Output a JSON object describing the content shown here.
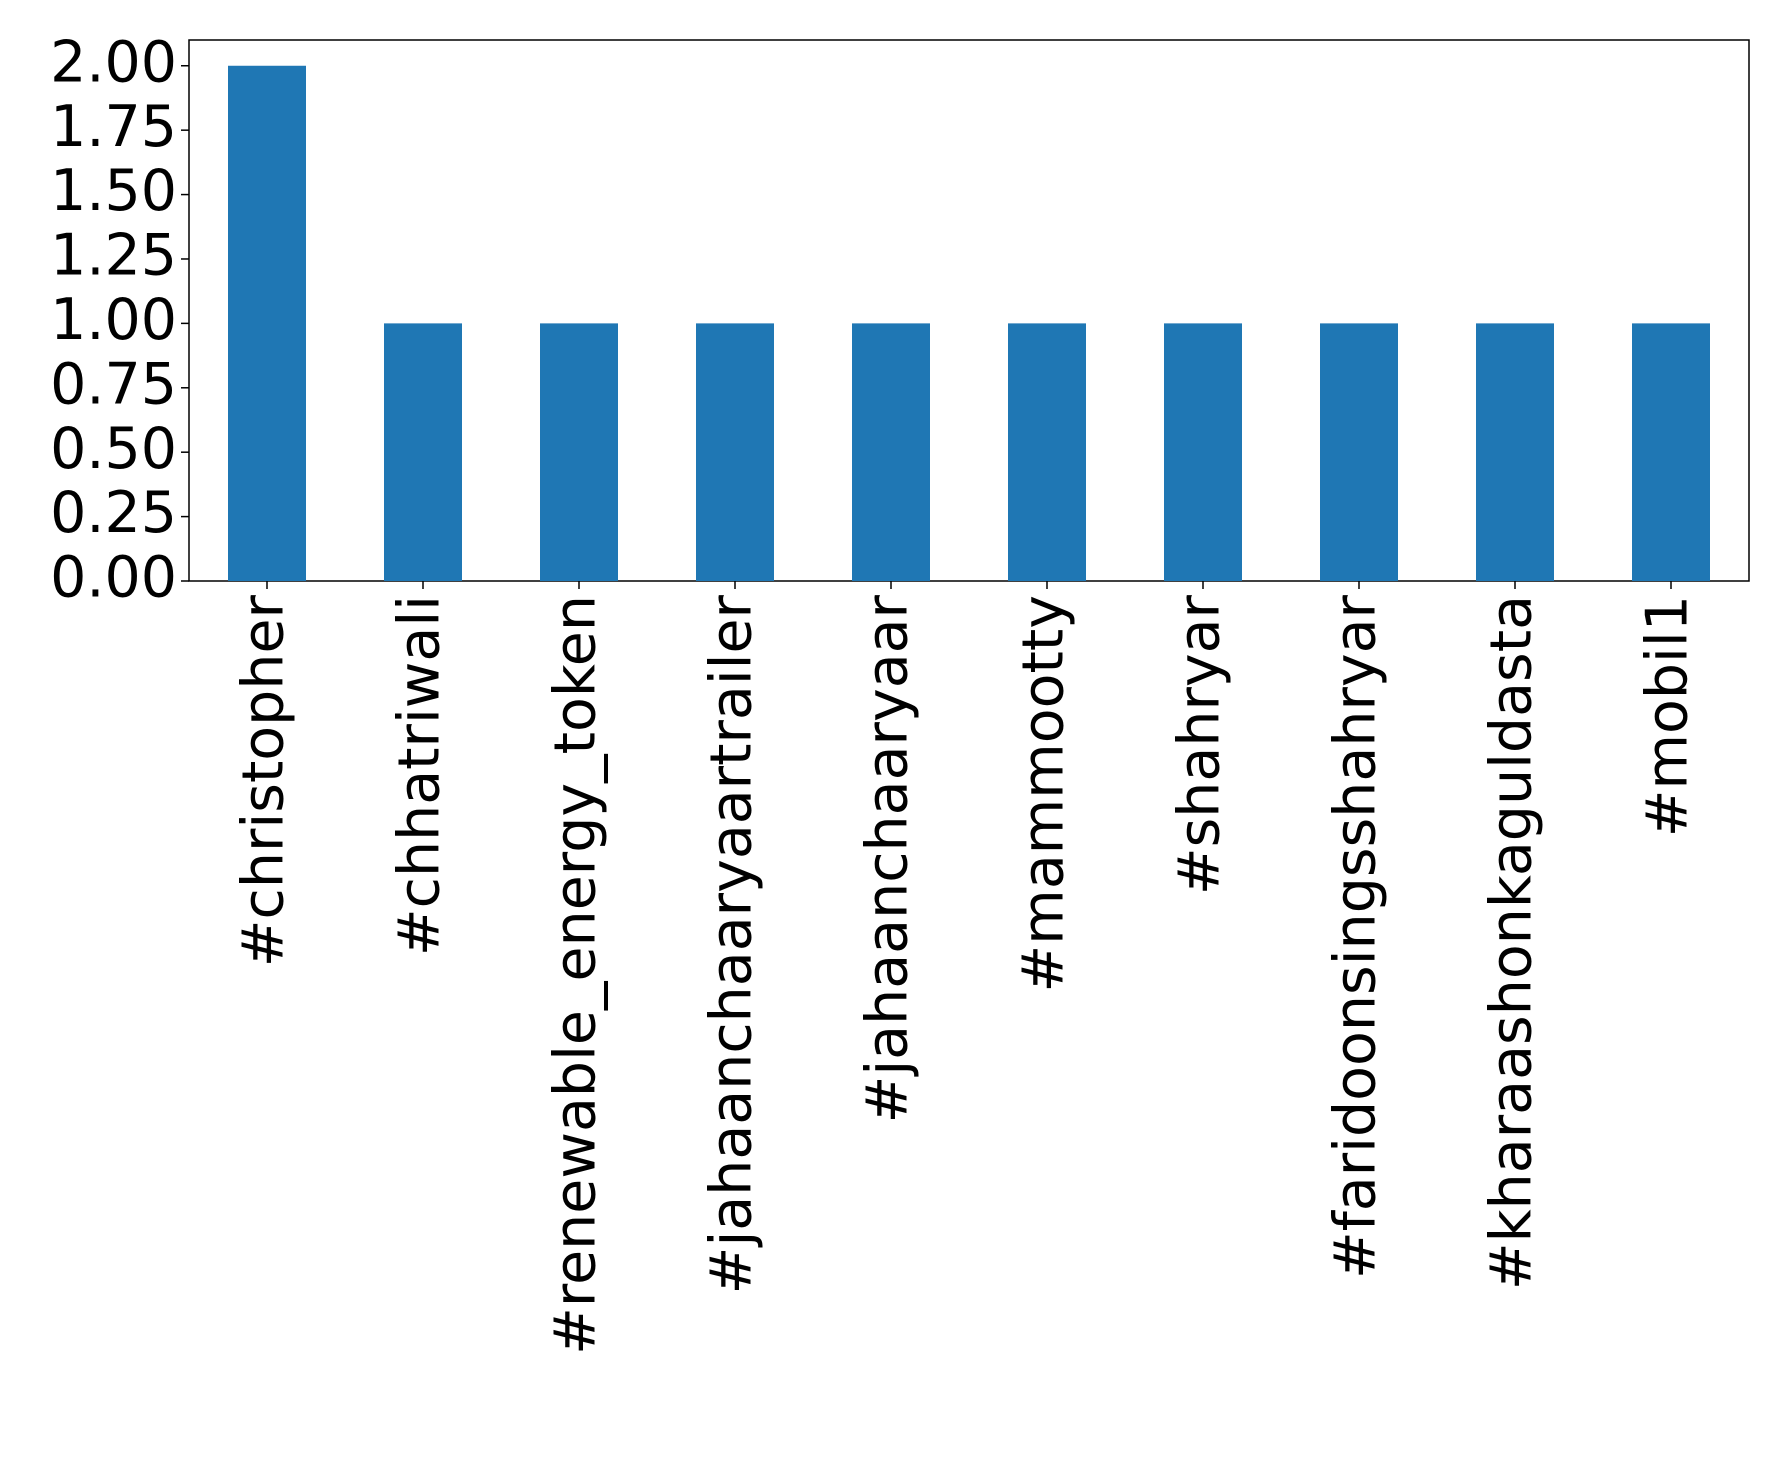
{
  "chart_data": {
    "type": "bar",
    "categories": [
      "#christopher",
      "#chhatriwali",
      "#renewable_energy_token",
      "#jahaanchaaryaartrailer",
      "#jahaanchaaryaar",
      "#mammootty",
      "#shahryar",
      "#faridoonsingsshahryar",
      "#kharaashonkaguldasta",
      "#mobil1"
    ],
    "values": [
      2,
      1,
      1,
      1,
      1,
      1,
      1,
      1,
      1,
      1
    ],
    "color": "#1f77b4",
    "ylim": [
      0,
      2.1
    ],
    "yticks": [
      {
        "value": 0,
        "label": "0.00"
      },
      {
        "value": 0.25,
        "label": "0.25"
      },
      {
        "value": 0.5,
        "label": "0.50"
      },
      {
        "value": 0.75,
        "label": "0.75"
      },
      {
        "value": 1,
        "label": "1.00"
      },
      {
        "value": 1.25,
        "label": "1.25"
      },
      {
        "value": 1.5,
        "label": "1.50"
      },
      {
        "value": 1.75,
        "label": "1.75"
      },
      {
        "value": 2,
        "label": "2.00"
      }
    ],
    "grid": false
  }
}
